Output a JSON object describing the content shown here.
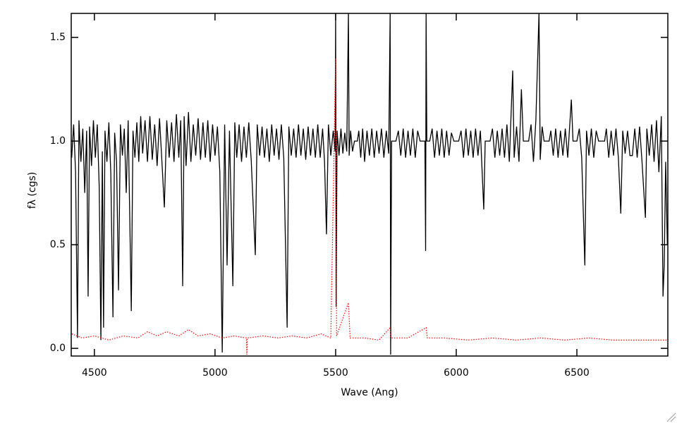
{
  "chart_data": {
    "type": "line",
    "xlabel": "Wave (Ang)",
    "ylabel": "fλ (cgs)",
    "xlim": [
      4404,
      6877
    ],
    "ylim": [
      -0.037,
      1.616
    ],
    "xticks": [
      4500,
      5000,
      5500,
      6000,
      6500
    ],
    "yticks": [
      {
        "value": 0,
        "label": "0.0"
      },
      {
        "value": 0.5,
        "label": "0.5"
      },
      {
        "value": 1,
        "label": "1.0"
      },
      {
        "value": 1.5,
        "label": "1.5"
      }
    ],
    "series": [
      {
        "color": "#000000",
        "style": "solid",
        "x": [
          4406,
          4414,
          4422,
          4430,
          4436,
          4444,
          4452,
          4460,
          4468,
          4474,
          4480,
          4488,
          4496,
          4504,
          4512,
          4520,
          4527,
          4533,
          4538,
          4544,
          4552,
          4560,
          4568,
          4577,
          4584,
          4592,
          4600,
          4608,
          4616,
          4624,
          4632,
          4640,
          4653,
          4660,
          4668,
          4676,
          4684,
          4692,
          4700,
          4710,
          4720,
          4730,
          4740,
          4750,
          4760,
          4770,
          4780,
          4790,
          4800,
          4810,
          4820,
          4830,
          4840,
          4850,
          4858,
          4866,
          4872,
          4880,
          4890,
          4900,
          4910,
          4920,
          4930,
          4940,
          4950,
          4960,
          4970,
          4980,
          4990,
          5000,
          5010,
          5020,
          5030,
          5040,
          5050,
          5060,
          5074,
          5082,
          5090,
          5100,
          5110,
          5120,
          5130,
          5140,
          5150,
          5167,
          5175,
          5185,
          5195,
          5205,
          5215,
          5225,
          5235,
          5245,
          5255,
          5265,
          5275,
          5285,
          5299,
          5306,
          5316,
          5326,
          5336,
          5346,
          5356,
          5366,
          5376,
          5386,
          5396,
          5406,
          5416,
          5426,
          5436,
          5446,
          5454,
          5462,
          5470,
          5480,
          5490,
          5498,
          5500,
          5502,
          5506,
          5514,
          5522,
          5530,
          5538,
          5546,
          5553,
          5556,
          5562,
          5570,
          5578,
          5590,
          5596,
          5604,
          5612,
          5620,
          5630,
          5640,
          5650,
          5660,
          5670,
          5680,
          5690,
          5700,
          5710,
          5720,
          5726,
          5728,
          5732,
          5750,
          5760,
          5770,
          5780,
          5790,
          5800,
          5810,
          5820,
          5830,
          5840,
          5850,
          5870,
          5873,
          5875,
          5878,
          5890,
          5900,
          5910,
          5920,
          5930,
          5940,
          5950,
          5960,
          5970,
          5980,
          5990,
          6010,
          6020,
          6030,
          6040,
          6050,
          6060,
          6070,
          6080,
          6090,
          6100,
          6114,
          6120,
          6140,
          6150,
          6160,
          6170,
          6180,
          6190,
          6200,
          6210,
          6220,
          6234,
          6240,
          6250,
          6260,
          6270,
          6278,
          6300,
          6310,
          6320,
          6330,
          6343,
          6348,
          6356,
          6364,
          6385,
          6392,
          6402,
          6412,
          6422,
          6432,
          6442,
          6452,
          6462,
          6477,
          6484,
          6500,
          6510,
          6520,
          6533,
          6540,
          6550,
          6560,
          6570,
          6580,
          6590,
          6615,
          6622,
          6632,
          6642,
          6652,
          6662,
          6672,
          6682,
          6690,
          6700,
          6710,
          6720,
          6730,
          6740,
          6750,
          6760,
          6770,
          6784,
          6790,
          6800,
          6810,
          6820,
          6830,
          6840,
          6850,
          6857,
          6862,
          6868,
          6875
        ],
        "values": [
          0.92,
          1.08,
          0.85,
          0.05,
          1.1,
          0.9,
          1.06,
          0.75,
          1.05,
          0.25,
          1.07,
          0.88,
          1.1,
          0.92,
          1.08,
          0.78,
          0.04,
          0.95,
          0.1,
          1.05,
          0.9,
          1.09,
          0.85,
          0.15,
          1.04,
          0.9,
          0.28,
          1.08,
          0.93,
          1.06,
          0.75,
          1.1,
          0.18,
          1.05,
          0.92,
          1.09,
          0.9,
          1.12,
          0.94,
          1.1,
          0.9,
          1.12,
          0.91,
          1.08,
          0.88,
          1.11,
          0.9,
          0.68,
          1.1,
          0.92,
          1.09,
          0.9,
          1.13,
          0.92,
          1.1,
          0.3,
          1.12,
          0.88,
          1.14,
          0.9,
          1.08,
          0.93,
          1.11,
          0.91,
          1.09,
          0.92,
          1.1,
          0.9,
          1.08,
          0.93,
          1.07,
          0.85,
          -0.02,
          1.08,
          0.4,
          1.05,
          0.3,
          1.09,
          0.92,
          1.08,
          0.9,
          1.07,
          0.92,
          1.09,
          0.91,
          0.45,
          1.08,
          0.93,
          1.07,
          0.92,
          1.06,
          0.9,
          1.08,
          0.93,
          1.06,
          0.91,
          1.08,
          0.92,
          0.1,
          1.07,
          0.93,
          1.06,
          0.92,
          1.08,
          0.93,
          1.06,
          0.91,
          1.07,
          0.93,
          1.06,
          0.92,
          1.08,
          0.92,
          1.06,
          0.9,
          0.55,
          1.08,
          0.93,
          1.05,
          0.95,
          1.62,
          0.2,
          1.05,
          0.93,
          1.06,
          0.94,
          1.04,
          0.95,
          1.62,
          0.93,
          1.05,
          0.95,
          1.0,
          1.0,
          1.05,
          0.92,
          1.06,
          0.9,
          1.05,
          0.93,
          1.06,
          0.92,
          1.05,
          0.94,
          1.06,
          0.92,
          1.05,
          0.94,
          1.62,
          -0.03,
          1.0,
          1.0,
          1.05,
          0.93,
          1.06,
          0.92,
          1.05,
          0.93,
          1.06,
          0.92,
          1.05,
          1.0,
          1.0,
          0.47,
          1.62,
          1.0,
          1.0,
          1.06,
          0.92,
          1.05,
          0.93,
          1.06,
          0.92,
          1.05,
          0.93,
          1.04,
          1.0,
          1.0,
          1.05,
          0.92,
          1.06,
          0.93,
          1.05,
          0.92,
          1.06,
          0.93,
          1.05,
          0.67,
          1.0,
          1.0,
          1.06,
          0.92,
          1.05,
          0.93,
          1.06,
          0.92,
          1.08,
          0.9,
          1.34,
          0.92,
          1.07,
          0.9,
          1.25,
          1.0,
          1.0,
          1.08,
          0.9,
          1.1,
          1.62,
          0.91,
          1.07,
          1.0,
          1.0,
          1.05,
          0.93,
          1.06,
          0.92,
          1.05,
          0.93,
          1.06,
          0.92,
          1.2,
          1.0,
          1.0,
          1.06,
          0.92,
          0.4,
          1.05,
          0.93,
          1.06,
          0.92,
          1.05,
          1.0,
          1.0,
          1.06,
          0.92,
          1.05,
          0.93,
          1.06,
          0.92,
          0.65,
          1.05,
          0.94,
          1.05,
          0.93,
          0.93,
          1.06,
          0.92,
          1.07,
          0.9,
          0.63,
          1.06,
          0.93,
          1.08,
          0.9,
          1.1,
          0.85,
          1.12,
          0.25,
          0.4,
          0.9,
          0.5
        ]
      },
      {
        "color": "#ff0000",
        "style": "dotted",
        "x": [
          4406,
          4450,
          4500,
          4560,
          4620,
          4680,
          4720,
          4760,
          4800,
          4850,
          4890,
          4930,
          4980,
          5030,
          5080,
          5130,
          5132,
          5134,
          5200,
          5260,
          5320,
          5380,
          5440,
          5480,
          5500,
          5504,
          5553,
          5560,
          5620,
          5680,
          5726,
          5730,
          5800,
          5875,
          5880,
          5950,
          6050,
          6150,
          6250,
          6350,
          6450,
          6550,
          6650,
          6750,
          6875
        ],
        "values": [
          0.07,
          0.05,
          0.06,
          0.04,
          0.06,
          0.05,
          0.08,
          0.06,
          0.08,
          0.06,
          0.09,
          0.06,
          0.07,
          0.05,
          0.06,
          0.05,
          -0.03,
          0.05,
          0.06,
          0.05,
          0.06,
          0.05,
          0.07,
          0.05,
          1.4,
          0.06,
          0.22,
          0.05,
          0.05,
          0.04,
          0.1,
          0.05,
          0.05,
          0.1,
          0.05,
          0.05,
          0.04,
          0.05,
          0.04,
          0.05,
          0.04,
          0.05,
          0.04,
          0.04,
          0.04
        ]
      }
    ]
  }
}
